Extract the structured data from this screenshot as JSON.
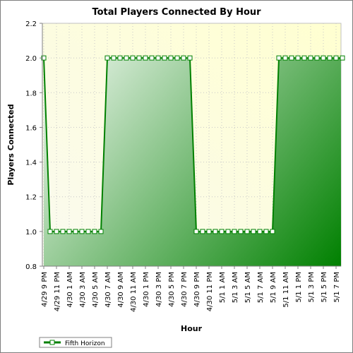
{
  "chart_data": {
    "type": "area",
    "title": "Total Players Connected By Hour",
    "xlabel": "Hour",
    "ylabel": "Players Connected",
    "ylim": [
      0.8,
      2.2
    ],
    "yticks": [
      "0.8",
      "1.0",
      "1.2",
      "1.4",
      "1.6",
      "1.8",
      "2.0",
      "2.2"
    ],
    "grid": true,
    "legend_position": "bottom-left",
    "x_tick_labels": [
      "4/29 9 PM",
      "4/29 11 PM",
      "4/30 1 AM",
      "4/30 3 AM",
      "4/30 5 AM",
      "4/30 7 AM",
      "4/30 9 AM",
      "4/30 11 AM",
      "4/30 1 PM",
      "4/30 3 PM",
      "4/30 5 PM",
      "4/30 7 PM",
      "4/30 9 PM",
      "4/30 11 PM",
      "5/1 1 AM",
      "5/1 3 AM",
      "5/1 5 AM",
      "5/1 7 AM",
      "5/1 9 AM",
      "5/1 11 AM",
      "5/1 1 PM",
      "5/1 3 PM",
      "5/1 5 PM",
      "5/1 7 PM"
    ],
    "series": [
      {
        "name": "Fifth Horizon",
        "color": "#008000",
        "values": [
          2,
          1,
          1,
          1,
          1,
          1,
          1,
          1,
          1,
          1,
          2,
          2,
          2,
          2,
          2,
          2,
          2,
          2,
          2,
          2,
          2,
          2,
          2,
          2,
          1,
          1,
          1,
          1,
          1,
          1,
          1,
          1,
          1,
          1,
          1,
          1,
          1,
          2,
          2,
          2,
          2,
          2,
          2,
          2,
          2,
          2,
          2,
          2
        ]
      }
    ]
  }
}
